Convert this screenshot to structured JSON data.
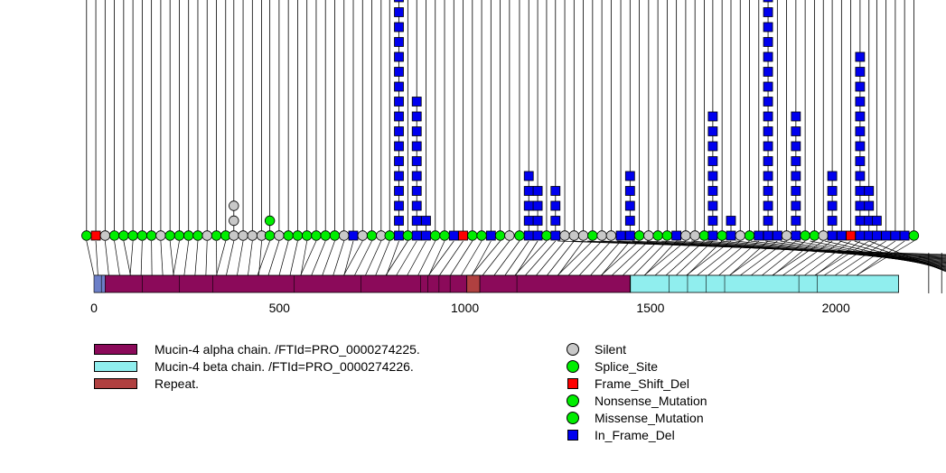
{
  "chart_data": {
    "type": "lollipop",
    "xlim": [
      0,
      2300
    ],
    "x_ticks": [
      0,
      500,
      1000,
      1500,
      2000
    ],
    "domains": [
      {
        "name": "Mucin-4 alpha chain. /FTId=PRO_0000274225.",
        "start": 1,
        "end": 1445,
        "color": "#8b0a5a"
      },
      {
        "name": "Mucin-4 beta chain. /FTId=PRO_0000274226.",
        "start": 1446,
        "end": 2169,
        "color": "#90eeee"
      },
      {
        "name": "Repeat.",
        "start": 1005,
        "end": 1040,
        "color": "#b04040"
      }
    ],
    "legend_domains": [
      {
        "label": "Mucin-4 alpha chain. /FTId=PRO_0000274225.",
        "color": "#8b0a5a"
      },
      {
        "label": "Mucin-4 beta chain. /FTId=PRO_0000274226.",
        "color": "#90eeee"
      },
      {
        "label": "Repeat.",
        "color": "#b04040"
      }
    ],
    "legend_mutations": [
      {
        "label": "Silent",
        "color": "#c8c8c8",
        "shape": "circle"
      },
      {
        "label": "Splice_Site",
        "color": "#00ee00",
        "shape": "circle"
      },
      {
        "label": "Frame_Shift_Del",
        "color": "#ff0000",
        "shape": "square"
      },
      {
        "label": "Nonsense_Mutation",
        "color": "#00ee00",
        "shape": "circle"
      },
      {
        "label": "Missense_Mutation",
        "color": "#00ee00",
        "shape": "circle"
      },
      {
        "label": "In_Frame_Del",
        "color": "#0000ee",
        "shape": "square"
      }
    ],
    "mutation_stacks": [
      {
        "pos": 822,
        "count": 18,
        "type": "In_Frame_Del"
      },
      {
        "pos": 870,
        "count": 10,
        "type": "In_Frame_Del"
      },
      {
        "pos": 895,
        "count": 2,
        "type": "In_Frame_Del"
      },
      {
        "pos": 1172,
        "count": 5,
        "type": "In_Frame_Del"
      },
      {
        "pos": 1196,
        "count": 4,
        "type": "In_Frame_Del"
      },
      {
        "pos": 1244,
        "count": 4,
        "type": "In_Frame_Del"
      },
      {
        "pos": 1445,
        "count": 5,
        "type": "In_Frame_Del"
      },
      {
        "pos": 1668,
        "count": 9,
        "type": "In_Frame_Del"
      },
      {
        "pos": 1717,
        "count": 2,
        "type": "In_Frame_Del"
      },
      {
        "pos": 1817,
        "count": 18,
        "type": "In_Frame_Del"
      },
      {
        "pos": 1892,
        "count": 9,
        "type": "In_Frame_Del"
      },
      {
        "pos": 1990,
        "count": 5,
        "type": "In_Frame_Del"
      },
      {
        "pos": 2065,
        "count": 13,
        "type": "In_Frame_Del"
      },
      {
        "pos": 2089,
        "count": 4,
        "type": "In_Frame_Del"
      },
      {
        "pos": 2110,
        "count": 2,
        "type": "In_Frame_Del"
      },
      {
        "pos": 377,
        "count": 3,
        "type": "Silent"
      },
      {
        "pos": 474,
        "count": 2,
        "type": "Missense_Mutation"
      }
    ],
    "baseline_markers": [
      {
        "pos": -20,
        "type": "Missense_Mutation"
      },
      {
        "pos": 5,
        "type": "Frame_Shift_Del"
      },
      {
        "pos": 30,
        "type": "Silent"
      },
      {
        "pos": 55,
        "type": "Missense_Mutation"
      },
      {
        "pos": 80,
        "type": "Missense_Mutation"
      },
      {
        "pos": 105,
        "type": "Missense_Mutation"
      },
      {
        "pos": 130,
        "type": "Missense_Mutation"
      },
      {
        "pos": 155,
        "type": "Missense_Mutation"
      },
      {
        "pos": 180,
        "type": "Silent"
      },
      {
        "pos": 205,
        "type": "Missense_Mutation"
      },
      {
        "pos": 230,
        "type": "Missense_Mutation"
      },
      {
        "pos": 255,
        "type": "Missense_Mutation"
      },
      {
        "pos": 280,
        "type": "Missense_Mutation"
      },
      {
        "pos": 305,
        "type": "Silent"
      },
      {
        "pos": 330,
        "type": "Missense_Mutation"
      },
      {
        "pos": 355,
        "type": "Missense_Mutation"
      },
      {
        "pos": 377,
        "type": "Silent"
      },
      {
        "pos": 402,
        "type": "Silent"
      },
      {
        "pos": 427,
        "type": "Silent"
      },
      {
        "pos": 452,
        "type": "Silent"
      },
      {
        "pos": 474,
        "type": "Missense_Mutation"
      },
      {
        "pos": 499,
        "type": "Silent"
      },
      {
        "pos": 524,
        "type": "Missense_Mutation"
      },
      {
        "pos": 549,
        "type": "Missense_Mutation"
      },
      {
        "pos": 574,
        "type": "Missense_Mutation"
      },
      {
        "pos": 599,
        "type": "Missense_Mutation"
      },
      {
        "pos": 624,
        "type": "Missense_Mutation"
      },
      {
        "pos": 649,
        "type": "Missense_Mutation"
      },
      {
        "pos": 674,
        "type": "Silent"
      },
      {
        "pos": 699,
        "type": "In_Frame_Del"
      },
      {
        "pos": 724,
        "type": "Silent"
      },
      {
        "pos": 749,
        "type": "Missense_Mutation"
      },
      {
        "pos": 774,
        "type": "Silent"
      },
      {
        "pos": 797,
        "type": "Missense_Mutation"
      },
      {
        "pos": 822,
        "type": "In_Frame_Del"
      },
      {
        "pos": 846,
        "type": "Missense_Mutation"
      },
      {
        "pos": 870,
        "type": "In_Frame_Del"
      },
      {
        "pos": 895,
        "type": "In_Frame_Del"
      },
      {
        "pos": 920,
        "type": "Missense_Mutation"
      },
      {
        "pos": 945,
        "type": "Missense_Mutation"
      },
      {
        "pos": 970,
        "type": "In_Frame_Del"
      },
      {
        "pos": 995,
        "type": "Frame_Shift_Del"
      },
      {
        "pos": 1020,
        "type": "Missense_Mutation"
      },
      {
        "pos": 1045,
        "type": "Missense_Mutation"
      },
      {
        "pos": 1070,
        "type": "In_Frame_Del"
      },
      {
        "pos": 1095,
        "type": "Missense_Mutation"
      },
      {
        "pos": 1120,
        "type": "Silent"
      },
      {
        "pos": 1147,
        "type": "Missense_Mutation"
      },
      {
        "pos": 1172,
        "type": "In_Frame_Del"
      },
      {
        "pos": 1196,
        "type": "In_Frame_Del"
      },
      {
        "pos": 1220,
        "type": "Missense_Mutation"
      },
      {
        "pos": 1244,
        "type": "In_Frame_Del"
      },
      {
        "pos": 1269,
        "type": "Silent"
      },
      {
        "pos": 1294,
        "type": "Silent"
      },
      {
        "pos": 1319,
        "type": "Silent"
      },
      {
        "pos": 1344,
        "type": "Missense_Mutation"
      },
      {
        "pos": 1369,
        "type": "Silent"
      },
      {
        "pos": 1394,
        "type": "Silent"
      },
      {
        "pos": 1420,
        "type": "In_Frame_Del"
      },
      {
        "pos": 1445,
        "type": "In_Frame_Del"
      },
      {
        "pos": 1470,
        "type": "Missense_Mutation"
      },
      {
        "pos": 1495,
        "type": "Silent"
      },
      {
        "pos": 1520,
        "type": "Missense_Mutation"
      },
      {
        "pos": 1545,
        "type": "Missense_Mutation"
      },
      {
        "pos": 1570,
        "type": "In_Frame_Del"
      },
      {
        "pos": 1595,
        "type": "Silent"
      },
      {
        "pos": 1620,
        "type": "Silent"
      },
      {
        "pos": 1645,
        "type": "Missense_Mutation"
      },
      {
        "pos": 1668,
        "type": "In_Frame_Del"
      },
      {
        "pos": 1693,
        "type": "Missense_Mutation"
      },
      {
        "pos": 1717,
        "type": "In_Frame_Del"
      },
      {
        "pos": 1742,
        "type": "Silent"
      },
      {
        "pos": 1767,
        "type": "Missense_Mutation"
      },
      {
        "pos": 1792,
        "type": "In_Frame_Del"
      },
      {
        "pos": 1817,
        "type": "In_Frame_Del"
      },
      {
        "pos": 1842,
        "type": "In_Frame_Del"
      },
      {
        "pos": 1867,
        "type": "Silent"
      },
      {
        "pos": 1892,
        "type": "In_Frame_Del"
      },
      {
        "pos": 1917,
        "type": "Missense_Mutation"
      },
      {
        "pos": 1942,
        "type": "Missense_Mutation"
      },
      {
        "pos": 1966,
        "type": "Silent"
      },
      {
        "pos": 1990,
        "type": "In_Frame_Del"
      },
      {
        "pos": 2015,
        "type": "In_Frame_Del"
      },
      {
        "pos": 2040,
        "type": "Frame_Shift_Del"
      },
      {
        "pos": 2065,
        "type": "In_Frame_Del"
      },
      {
        "pos": 2089,
        "type": "In_Frame_Del"
      },
      {
        "pos": 2110,
        "type": "In_Frame_Del"
      },
      {
        "pos": 2135,
        "type": "In_Frame_Del"
      },
      {
        "pos": 2160,
        "type": "In_Frame_Del"
      },
      {
        "pos": 2185,
        "type": "In_Frame_Del"
      },
      {
        "pos": 2210,
        "type": "Missense_Mutation"
      }
    ]
  }
}
